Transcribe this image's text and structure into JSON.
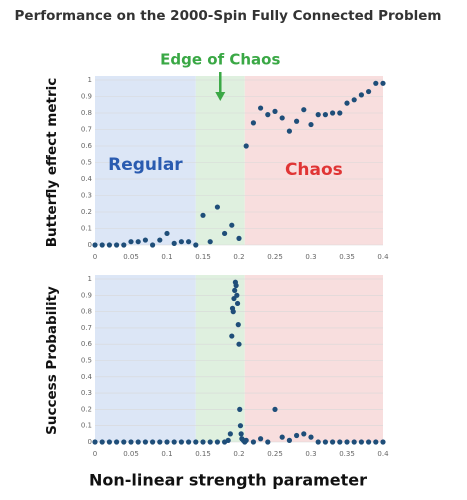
{
  "chart_data": [
    {
      "type": "scatter",
      "title": "Performance on the 2000-Spin Fully Connected Problem",
      "y_label": "Butterfly effect metric",
      "regions": [
        {
          "label": "Regular",
          "start": 0,
          "end": 0.14,
          "color": "#dce6f6"
        },
        {
          "label": "Edge of Chaos",
          "start": 0.14,
          "end": 0.208,
          "color": "#dff0df"
        },
        {
          "label": "Chaos",
          "start": 0.208,
          "end": 0.4,
          "color": "#f8dede"
        }
      ],
      "x": [
        0,
        0.01,
        0.02,
        0.03,
        0.04,
        0.05,
        0.06,
        0.07,
        0.08,
        0.09,
        0.1,
        0.11,
        0.12,
        0.13,
        0.14,
        0.15,
        0.16,
        0.17,
        0.18,
        0.19,
        0.2,
        0.21,
        0.22,
        0.23,
        0.24,
        0.25,
        0.26,
        0.27,
        0.28,
        0.29,
        0.3,
        0.31,
        0.32,
        0.33,
        0.34,
        0.35,
        0.36,
        0.37,
        0.38,
        0.39,
        0.4
      ],
      "series": [
        {
          "color": "#1f4e79",
          "values": [
            0,
            0,
            0,
            0,
            0,
            0.02,
            0.02,
            0.03,
            0,
            0.03,
            0.07,
            0.01,
            0.02,
            0.02,
            0,
            0.18,
            0.02,
            0.23,
            0.07,
            0.12,
            0.04,
            0.6,
            0.74,
            0.83,
            0.79,
            0.81,
            0.77,
            0.69,
            0.75,
            0.82,
            0.73,
            0.79,
            0.79,
            0.8,
            0.8,
            0.86,
            0.88,
            0.91,
            0.93,
            0.98,
            0.98
          ]
        }
      ],
      "xlim": [
        0,
        0.4
      ],
      "xticks": [
        0,
        0.05,
        0.1,
        0.15,
        0.2,
        0.25,
        0.3,
        0.35,
        0.4
      ],
      "ylim": [
        0,
        1
      ],
      "yticks": [
        0,
        0.1,
        0.2,
        0.3,
        0.4,
        0.5,
        0.6,
        0.7,
        0.8,
        0.9,
        1
      ],
      "grid": true
    },
    {
      "type": "scatter",
      "y_label": "Success Probability",
      "x_label": "Non-linear strength parameter",
      "regions": [
        {
          "start": 0,
          "end": 0.14,
          "color": "#dce6f6"
        },
        {
          "start": 0.14,
          "end": 0.208,
          "color": "#dff0df"
        },
        {
          "start": 0.208,
          "end": 0.4,
          "color": "#f8dede"
        }
      ],
      "x": [
        0,
        0.01,
        0.02,
        0.03,
        0.04,
        0.05,
        0.06,
        0.07,
        0.08,
        0.09,
        0.1,
        0.11,
        0.12,
        0.13,
        0.14,
        0.15,
        0.16,
        0.17,
        0.18,
        0.185,
        0.188,
        0.19,
        0.191,
        0.192,
        0.193,
        0.194,
        0.195,
        0.196,
        0.197,
        0.198,
        0.199,
        0.2,
        0.201,
        0.202,
        0.203,
        0.204,
        0.206,
        0.208,
        0.21,
        0.22,
        0.23,
        0.24,
        0.25,
        0.26,
        0.27,
        0.28,
        0.29,
        0.3,
        0.31,
        0.32,
        0.33,
        0.34,
        0.35,
        0.36,
        0.37,
        0.38,
        0.39,
        0.4
      ],
      "series": [
        {
          "color": "#1f4e79",
          "values": [
            0,
            0,
            0,
            0,
            0,
            0,
            0,
            0,
            0,
            0,
            0,
            0,
            0,
            0,
            0,
            0,
            0,
            0,
            0,
            0.01,
            0.05,
            0.65,
            0.82,
            0.8,
            0.88,
            0.93,
            0.98,
            0.96,
            0.9,
            0.85,
            0.72,
            0.6,
            0.2,
            0.1,
            0.05,
            0.02,
            0.01,
            0,
            0.01,
            0,
            0.02,
            0,
            0.2,
            0.03,
            0.01,
            0.04,
            0.05,
            0.03,
            0,
            0,
            0,
            0,
            0,
            0,
            0,
            0,
            0,
            0
          ]
        }
      ],
      "xlim": [
        0,
        0.4
      ],
      "xticks": [
        0,
        0.05,
        0.1,
        0.15,
        0.2,
        0.25,
        0.3,
        0.35,
        0.4
      ],
      "ylim": [
        0,
        1
      ],
      "yticks": [
        0,
        0.1,
        0.2,
        0.3,
        0.4,
        0.5,
        0.6,
        0.7,
        0.8,
        0.9,
        1
      ],
      "grid": true
    }
  ]
}
